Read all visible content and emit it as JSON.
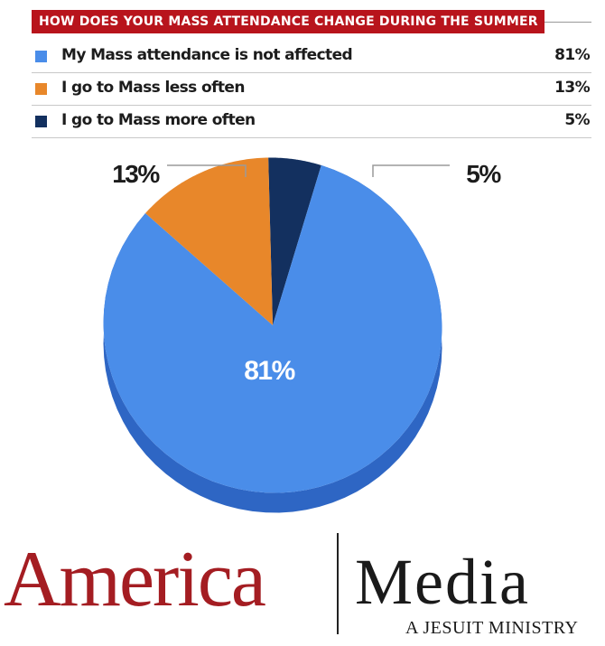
{
  "chart_data": {
    "type": "pie",
    "title": "HOW DOES YOUR MASS ATTENDANCE CHANGE DURING THE SUMMER",
    "slices": [
      {
        "label": "My Mass attendance is not affected",
        "value": 81,
        "display": "81%",
        "color": "#4a8de9"
      },
      {
        "label": "I go to Mass less often",
        "value": 13,
        "display": "13%",
        "color": "#e8872a"
      },
      {
        "label": "I go to Mass more often",
        "value": 5,
        "display": "5%",
        "color": "#13305f"
      }
    ],
    "chart_labels": {
      "orange_callout": "13%",
      "navy_callout": "5%",
      "main_label": "81%"
    }
  },
  "brand": {
    "america": "America",
    "media": "Media",
    "tagline": "A JESUIT MINISTRY",
    "america_color": "#a41d22"
  }
}
